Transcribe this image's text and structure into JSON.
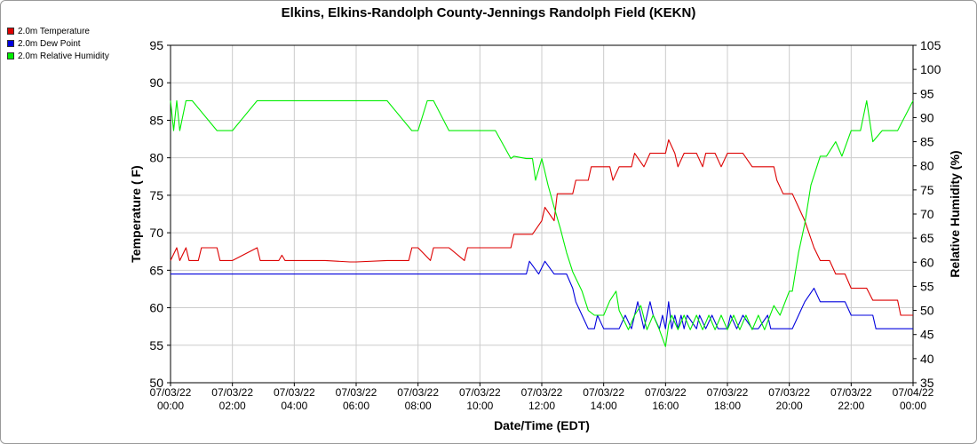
{
  "chart_data": {
    "type": "line",
    "title": "Elkins, Elkins-Randolph County-Jennings Randolph Field (KEKN)",
    "xlabel": "Date/Time (EDT)",
    "ylabel_left": "Temperature ( F)",
    "ylabel_right": "Relative Humidity (%)",
    "ylim_left": [
      50,
      95
    ],
    "ylim_right": [
      35,
      105
    ],
    "xlim_hours": [
      0,
      24
    ],
    "grid": true,
    "legend_placement": "top-left",
    "x_tick_labels": [
      [
        "07/03/22",
        "00:00"
      ],
      [
        "07/03/22",
        "02:00"
      ],
      [
        "07/03/22",
        "04:00"
      ],
      [
        "07/03/22",
        "06:00"
      ],
      [
        "07/03/22",
        "08:00"
      ],
      [
        "07/03/22",
        "10:00"
      ],
      [
        "07/03/22",
        "12:00"
      ],
      [
        "07/03/22",
        "14:00"
      ],
      [
        "07/03/22",
        "16:00"
      ],
      [
        "07/03/22",
        "18:00"
      ],
      [
        "07/03/22",
        "20:00"
      ],
      [
        "07/03/22",
        "22:00"
      ],
      [
        "07/04/22",
        "00:00"
      ]
    ],
    "y_left_ticks": [
      "50",
      "55",
      "60",
      "65",
      "70",
      "75",
      "80",
      "85",
      "90",
      "95"
    ],
    "y_right_ticks": [
      "35",
      "40",
      "45",
      "50",
      "55",
      "60",
      "65",
      "70",
      "75",
      "80",
      "85",
      "90",
      "95",
      "100",
      "105"
    ],
    "series": [
      {
        "name": "2.0m Temperature",
        "color": "#dd0000",
        "axis": "left",
        "x": [
          0,
          0.2,
          0.3,
          0.5,
          0.6,
          0.9,
          1.0,
          1.5,
          1.6,
          2.0,
          2.8,
          2.9,
          3.5,
          3.6,
          3.7,
          4.5,
          5.0,
          5.8,
          6.0,
          7.0,
          7.7,
          7.8,
          8.0,
          8.4,
          8.5,
          9.0,
          9.5,
          9.6,
          10.0,
          10.5,
          11.0,
          11.1,
          11.5,
          11.7,
          12.0,
          12.1,
          12.4,
          12.5,
          13.0,
          13.1,
          13.5,
          13.6,
          14.0,
          14.2,
          14.3,
          14.5,
          14.7,
          14.9,
          15.0,
          15.3,
          15.5,
          15.6,
          16.0,
          16.1,
          16.3,
          16.4,
          16.6,
          17.0,
          17.2,
          17.3,
          17.6,
          17.8,
          18.0,
          18.5,
          18.8,
          19.0,
          19.5,
          19.6,
          19.8,
          20.1,
          20.3,
          20.5,
          20.8,
          21.0,
          21.2,
          21.3,
          21.5,
          21.8,
          22.0,
          22.1,
          22.5,
          22.7,
          22.9,
          23.0,
          23.5,
          23.6,
          24.0
        ],
        "values": [
          66.3,
          68.0,
          66.3,
          68.0,
          66.3,
          66.3,
          68.0,
          68.0,
          66.3,
          66.3,
          68.0,
          66.3,
          66.3,
          67.0,
          66.3,
          66.3,
          66.3,
          66.1,
          66.1,
          66.3,
          66.3,
          68.0,
          68.0,
          66.3,
          68.0,
          68.0,
          66.3,
          68.0,
          68.0,
          68.0,
          68.0,
          69.8,
          69.8,
          69.8,
          71.6,
          73.4,
          71.6,
          75.2,
          75.2,
          77.0,
          77.0,
          78.8,
          78.8,
          78.8,
          77.0,
          78.8,
          78.8,
          78.8,
          80.6,
          78.8,
          80.6,
          80.6,
          80.6,
          82.4,
          80.6,
          78.8,
          80.6,
          80.6,
          78.8,
          80.6,
          80.6,
          78.8,
          80.6,
          80.6,
          78.8,
          78.8,
          78.8,
          77.0,
          75.2,
          75.2,
          73.4,
          71.6,
          68.0,
          66.3,
          66.3,
          66.3,
          64.5,
          64.5,
          62.6,
          62.6,
          62.6,
          61.0,
          61.0,
          61.0,
          61.0,
          59.0,
          59.0
        ]
      },
      {
        "name": "2.0m Dew Point",
        "color": "#0000dd",
        "axis": "left",
        "x": [
          0,
          0.1,
          0.2,
          1.0,
          1.5,
          2.0,
          3.0,
          3.5,
          4.0,
          4.5,
          5.0,
          5.8,
          6.0,
          7.0,
          7.5,
          8.0,
          9.0,
          10.0,
          10.5,
          11.0,
          11.5,
          11.6,
          11.9,
          12.1,
          12.4,
          12.8,
          13.0,
          13.1,
          13.3,
          13.5,
          13.7,
          13.8,
          14.0,
          14.2,
          14.5,
          14.7,
          14.9,
          15.1,
          15.2,
          15.3,
          15.5,
          15.6,
          15.8,
          15.9,
          16.0,
          16.1,
          16.2,
          16.3,
          16.4,
          16.5,
          16.6,
          16.7,
          17.0,
          17.1,
          17.3,
          17.5,
          17.7,
          18.0,
          18.1,
          18.3,
          18.5,
          18.8,
          19.0,
          19.3,
          19.4,
          19.5,
          19.8,
          20.0,
          20.1,
          20.3,
          20.5,
          20.8,
          21.0,
          21.3,
          21.5,
          21.8,
          22.0,
          22.5,
          22.7,
          22.8,
          23.0,
          23.5,
          24.0
        ],
        "values": [
          64.5,
          64.5,
          64.5,
          64.5,
          64.5,
          64.5,
          64.5,
          64.5,
          64.5,
          64.5,
          64.5,
          64.5,
          64.5,
          64.5,
          64.5,
          64.5,
          64.5,
          64.5,
          64.5,
          64.5,
          64.5,
          66.2,
          64.5,
          66.2,
          64.5,
          64.5,
          62.6,
          60.8,
          59.0,
          57.2,
          57.2,
          59.0,
          57.2,
          57.2,
          57.2,
          59.0,
          57.2,
          60.8,
          59.0,
          57.2,
          60.8,
          59.0,
          57.2,
          59.0,
          57.2,
          60.8,
          57.2,
          59.0,
          57.2,
          59.0,
          57.2,
          59.0,
          57.2,
          59.0,
          57.2,
          59.0,
          57.2,
          57.2,
          59.0,
          57.2,
          59.0,
          57.2,
          57.2,
          59.0,
          57.2,
          57.2,
          57.2,
          57.2,
          57.2,
          59.0,
          60.8,
          62.6,
          60.8,
          60.8,
          60.8,
          60.8,
          59.0,
          59.0,
          59.0,
          57.2,
          57.2,
          57.2,
          57.2
        ]
      },
      {
        "name": "2.0m Relative Humidity",
        "color": "#00ee00",
        "axis": "right",
        "x": [
          0,
          0.1,
          0.2,
          0.3,
          0.5,
          0.6,
          0.7,
          1.5,
          1.6,
          2.0,
          2.8,
          3.0,
          3.5,
          4.0,
          5.0,
          6.0,
          7.0,
          7.8,
          8.0,
          8.3,
          8.5,
          9.0,
          9.5,
          10.0,
          10.5,
          11.0,
          11.1,
          11.5,
          11.7,
          11.8,
          12.0,
          12.2,
          12.4,
          12.6,
          12.8,
          13.0,
          13.3,
          13.5,
          13.7,
          14.0,
          14.2,
          14.4,
          14.5,
          14.8,
          15.0,
          15.2,
          15.4,
          15.6,
          15.8,
          16.0,
          16.1,
          16.2,
          16.4,
          16.6,
          16.8,
          17.0,
          17.2,
          17.4,
          17.6,
          17.8,
          18.0,
          18.2,
          18.4,
          18.6,
          18.8,
          19.0,
          19.2,
          19.5,
          19.7,
          20.0,
          20.1,
          20.2,
          20.3,
          20.5,
          20.7,
          21.0,
          21.2,
          21.5,
          21.7,
          22.0,
          22.3,
          22.5,
          22.7,
          23.0,
          23.3,
          23.5,
          24.0
        ],
        "values": [
          93.5,
          87.3,
          93.5,
          87.3,
          93.5,
          93.5,
          93.5,
          87.3,
          87.3,
          87.3,
          93.5,
          93.5,
          93.5,
          93.5,
          93.5,
          93.5,
          93.5,
          87.3,
          87.3,
          93.5,
          93.5,
          87.3,
          87.3,
          87.3,
          87.3,
          81.5,
          82.0,
          81.5,
          81.5,
          77.0,
          81.5,
          76.0,
          71.4,
          67.0,
          62.0,
          58.0,
          54.0,
          50.0,
          49.0,
          49.0,
          52.0,
          54.0,
          50.0,
          46.0,
          49.0,
          51.0,
          46.0,
          49.0,
          46.0,
          42.5,
          47.0,
          49.0,
          46.0,
          49.0,
          46.0,
          49.0,
          46.0,
          49.0,
          46.0,
          49.0,
          46.0,
          49.0,
          46.0,
          49.0,
          46.0,
          49.0,
          46.0,
          51.0,
          49.0,
          54.0,
          54.0,
          58.0,
          62.0,
          68.0,
          76.0,
          82.0,
          82.0,
          85.0,
          82.0,
          87.3,
          87.3,
          93.5,
          85.0,
          87.3,
          87.3,
          87.3,
          93.5
        ]
      }
    ]
  }
}
